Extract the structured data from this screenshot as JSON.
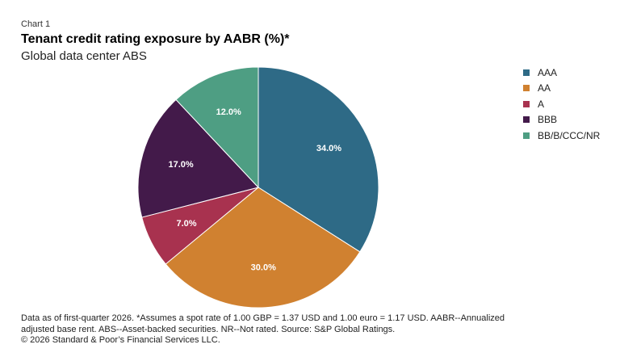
{
  "header": {
    "chart_label": "Chart 1",
    "title": "Tenant credit rating exposure by AABR (%)*",
    "subtitle": "Global data center ABS"
  },
  "chart_data": {
    "type": "pie",
    "title": "Tenant credit rating exposure by AABR (%)*",
    "subtitle": "Global data center ABS",
    "legend_position": "right",
    "slices": [
      {
        "label": "AAA",
        "value": 34.0,
        "value_label": "34.0%",
        "color": "#2e6a86"
      },
      {
        "label": "AA",
        "value": 30.0,
        "value_label": "30.0%",
        "color": "#d08130"
      },
      {
        "label": "A",
        "value": 7.0,
        "value_label": "7.0%",
        "color": "#a8324f"
      },
      {
        "label": "BBB",
        "value": 17.0,
        "value_label": "17.0%",
        "color": "#431a4a"
      },
      {
        "label": "BB/B/CCC/NR",
        "value": 12.0,
        "value_label": "12.0%",
        "color": "#4e9e83"
      }
    ]
  },
  "footnote": {
    "line1": "Data as of first-quarter 2026. *Assumes a spot rate of 1.00 GBP = 1.37 USD and 1.00 euro = 1.17 USD. AABR--Annualized",
    "line2": "adjusted base rent. ABS--Asset-backed securities. NR--Not rated. Source: S&P Global Ratings.",
    "line3": "© 2026 Standard & Poor’s Financial Services LLC."
  }
}
